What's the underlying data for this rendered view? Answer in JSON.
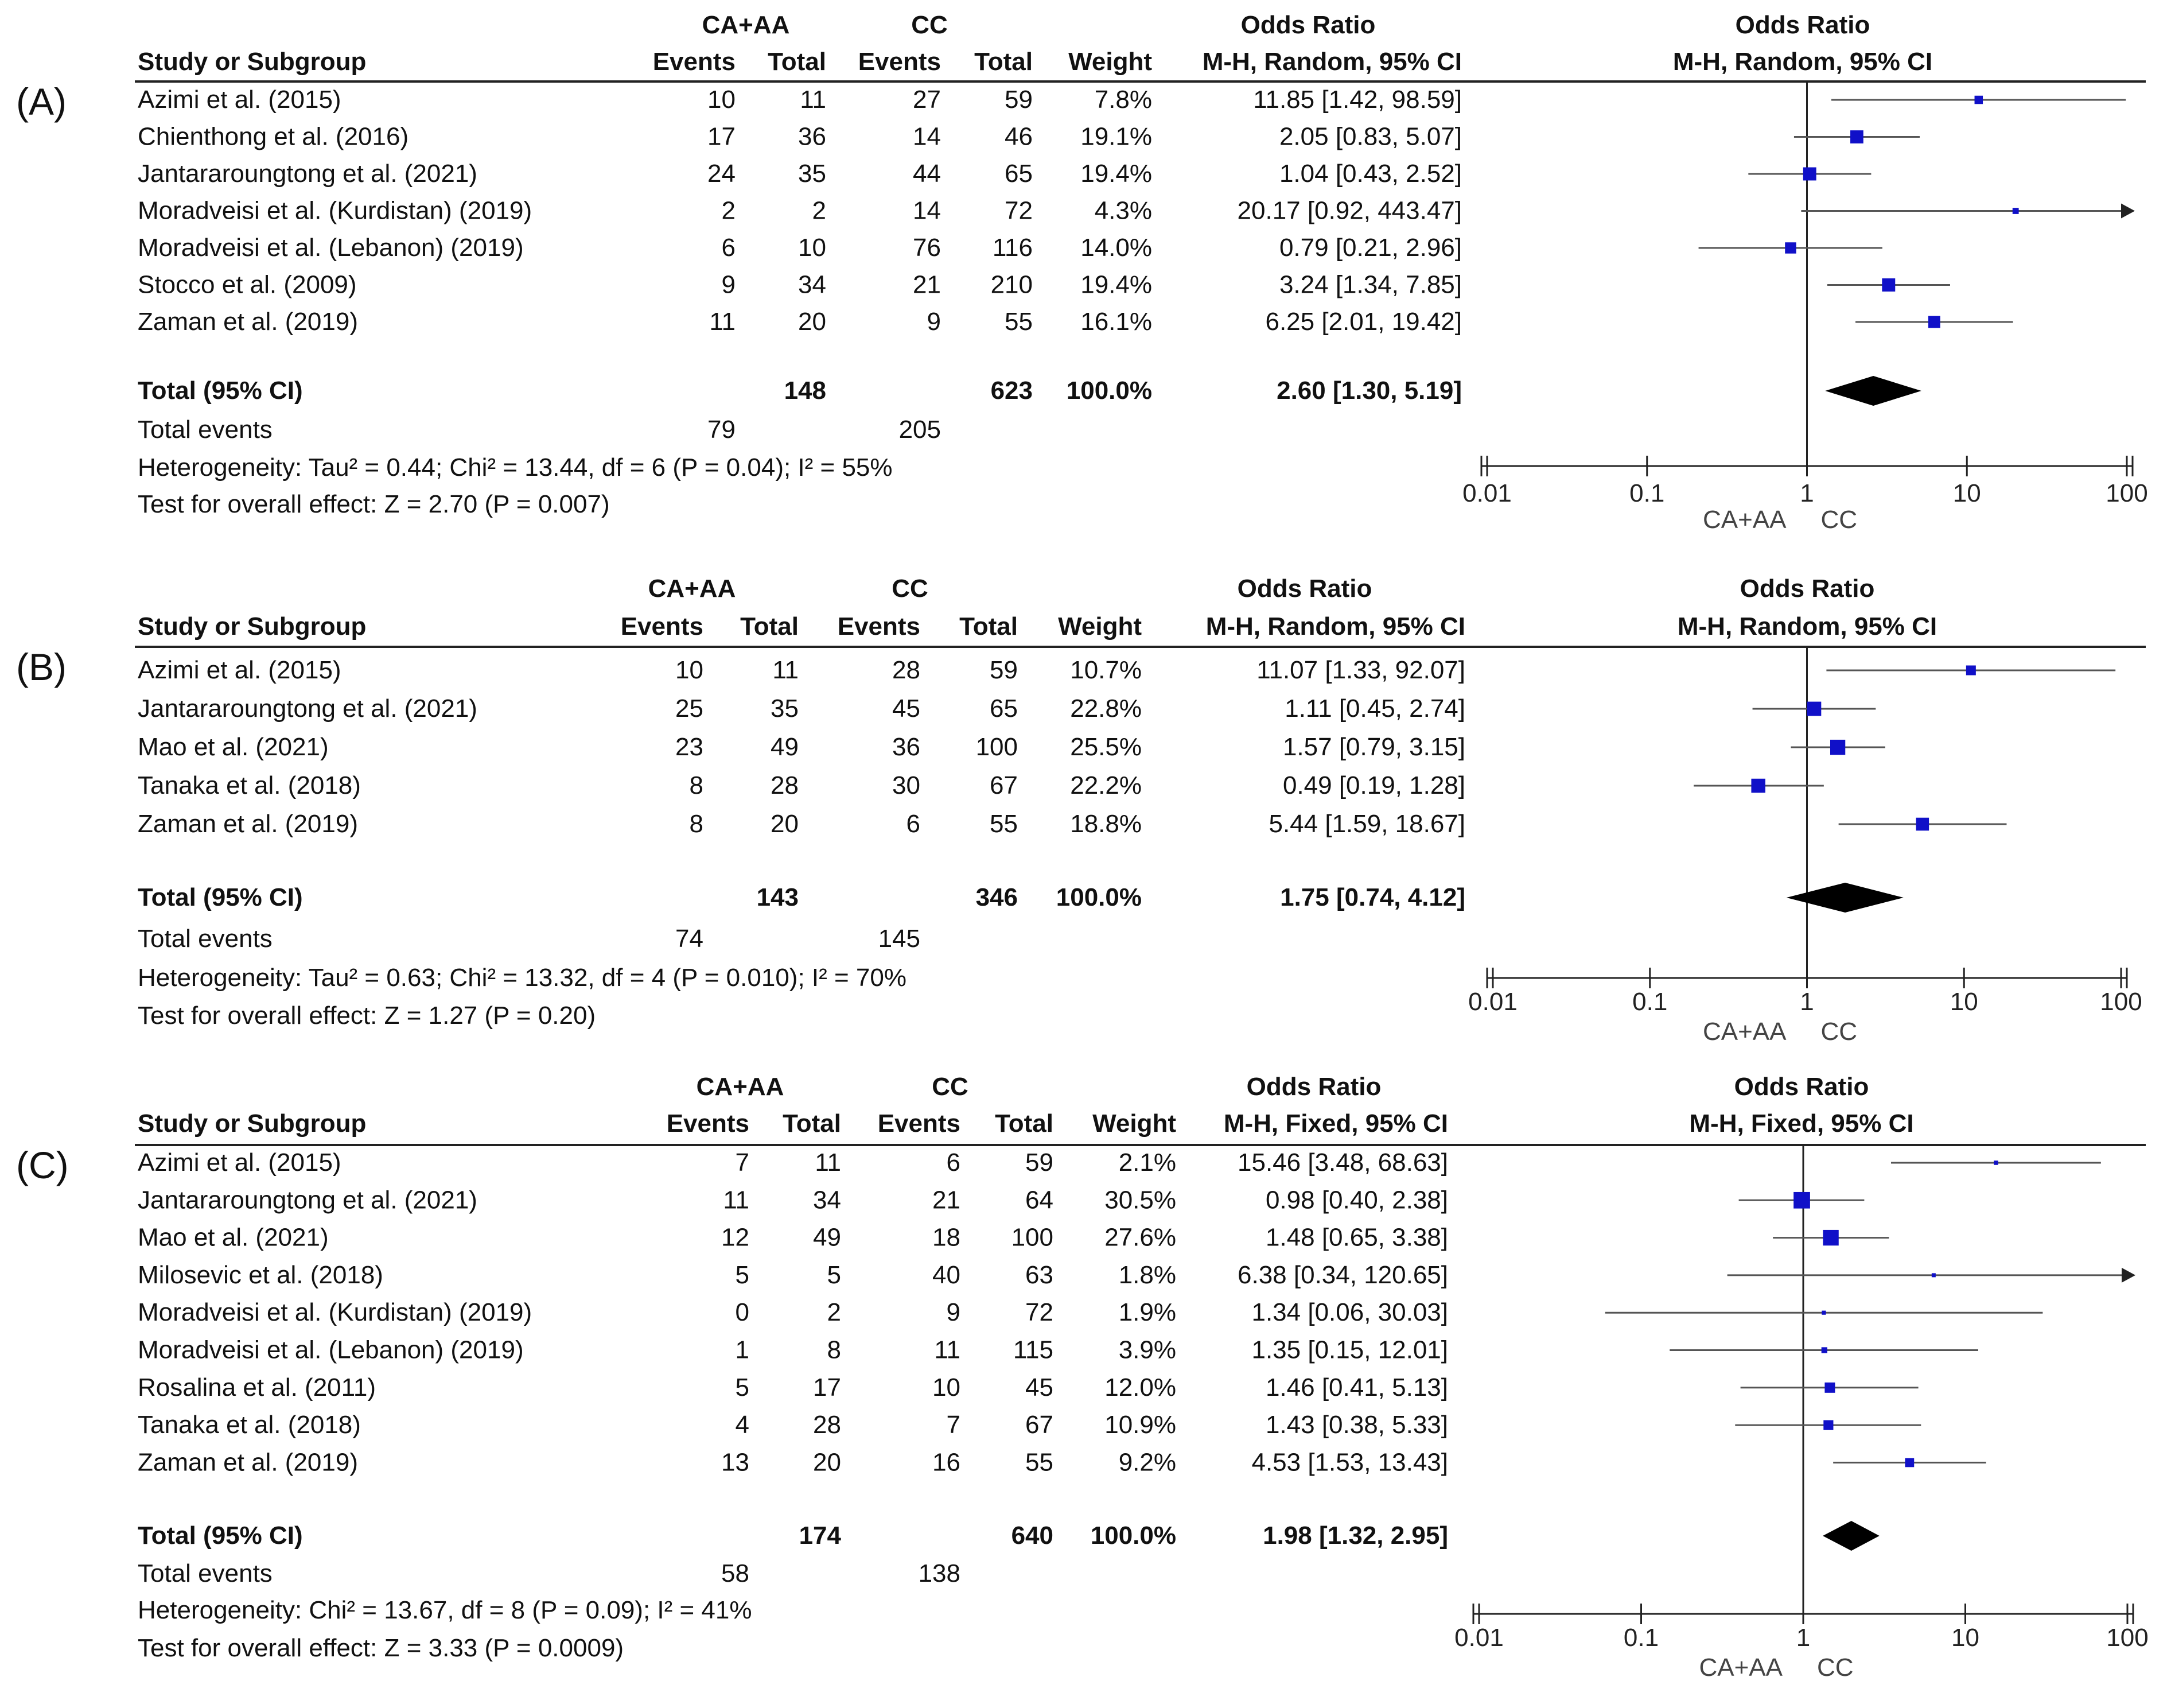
{
  "chart_data": [
    {
      "type": "forest",
      "panel": "(A)",
      "group1": "CA+AA",
      "group2": "CC",
      "col_headers": [
        "Study or Subgroup",
        "Events",
        "Total",
        "Events",
        "Total",
        "Weight",
        "Odds Ratio",
        "M-H, Random, 95% CI"
      ],
      "plot_header": [
        "Odds Ratio",
        "M-H, Random, 95% CI"
      ],
      "studies": [
        {
          "name": "Azimi et al. (2015)",
          "e1": "10",
          "n1": "11",
          "e2": "27",
          "n2": "59",
          "weight": "7.8%",
          "ci_text": "11.85 [1.42, 98.59]",
          "or": 11.85,
          "lo": 1.42,
          "hi": 98.59
        },
        {
          "name": "Chienthong et al. (2016)",
          "e1": "17",
          "n1": "36",
          "e2": "14",
          "n2": "46",
          "weight": "19.1%",
          "ci_text": "2.05 [0.83, 5.07]",
          "or": 2.05,
          "lo": 0.83,
          "hi": 5.07
        },
        {
          "name": "Jantararoungtong et al. (2021)",
          "e1": "24",
          "n1": "35",
          "e2": "44",
          "n2": "65",
          "weight": "19.4%",
          "ci_text": "1.04 [0.43, 2.52]",
          "or": 1.04,
          "lo": 0.43,
          "hi": 2.52
        },
        {
          "name": "Moradveisi et al. (Kurdistan) (2019)",
          "e1": "2",
          "n1": "2",
          "e2": "14",
          "n2": "72",
          "weight": "4.3%",
          "ci_text": "20.17 [0.92, 443.47]",
          "or": 20.17,
          "lo": 0.92,
          "hi": 443.47
        },
        {
          "name": "Moradveisi et al. (Lebanon) (2019)",
          "e1": "6",
          "n1": "10",
          "e2": "76",
          "n2": "116",
          "weight": "14.0%",
          "ci_text": "0.79 [0.21, 2.96]",
          "or": 0.79,
          "lo": 0.21,
          "hi": 2.96
        },
        {
          "name": "Stocco et al. (2009)",
          "e1": "9",
          "n1": "34",
          "e2": "21",
          "n2": "210",
          "weight": "19.4%",
          "ci_text": "3.24 [1.34, 7.85]",
          "or": 3.24,
          "lo": 1.34,
          "hi": 7.85
        },
        {
          "name": "Zaman et al. (2019)",
          "e1": "11",
          "n1": "20",
          "e2": "9",
          "n2": "55",
          "weight": "16.1%",
          "ci_text": "6.25 [2.01, 19.42]",
          "or": 6.25,
          "lo": 2.01,
          "hi": 19.42
        }
      ],
      "total": {
        "label": "Total (95% CI)",
        "n1": "148",
        "n2": "623",
        "weight": "100.0%",
        "ci_text": "2.60 [1.30, 5.19]",
        "or": 2.6,
        "lo": 1.3,
        "hi": 5.19
      },
      "events": {
        "label": "Total events",
        "e1": "79",
        "e2": "205"
      },
      "heterogeneity": "Heterogeneity: Tau² = 0.44; Chi² = 13.44, df = 6 (P = 0.04); I² = 55%",
      "overall": "Test for overall effect: Z = 2.70 (P = 0.007)",
      "axis": {
        "scale": "log",
        "range": [
          0.01,
          100
        ],
        "ticks": [
          0.01,
          0.1,
          1,
          10,
          100
        ],
        "tick_labels": [
          "0.01",
          "0.1",
          "1",
          "10",
          "100"
        ]
      },
      "favours": [
        "CA+AA",
        "CC"
      ]
    },
    {
      "type": "forest",
      "panel": "(B)",
      "group1": "CA+AA",
      "group2": "CC",
      "col_headers": [
        "Study or Subgroup",
        "Events",
        "Total",
        "Events",
        "Total",
        "Weight",
        "Odds Ratio",
        "M-H, Random, 95% CI"
      ],
      "plot_header": [
        "Odds Ratio",
        "M-H, Random, 95% CI"
      ],
      "studies": [
        {
          "name": "Azimi et al. (2015)",
          "e1": "10",
          "n1": "11",
          "e2": "28",
          "n2": "59",
          "weight": "10.7%",
          "ci_text": "11.07 [1.33, 92.07]",
          "or": 11.07,
          "lo": 1.33,
          "hi": 92.07
        },
        {
          "name": "Jantararoungtong et al. (2021)",
          "e1": "25",
          "n1": "35",
          "e2": "45",
          "n2": "65",
          "weight": "22.8%",
          "ci_text": "1.11 [0.45, 2.74]",
          "or": 1.11,
          "lo": 0.45,
          "hi": 2.74
        },
        {
          "name": "Mao et al. (2021)",
          "e1": "23",
          "n1": "49",
          "e2": "36",
          "n2": "100",
          "weight": "25.5%",
          "ci_text": "1.57 [0.79, 3.15]",
          "or": 1.57,
          "lo": 0.79,
          "hi": 3.15
        },
        {
          "name": "Tanaka et al. (2018)",
          "e1": "8",
          "n1": "28",
          "e2": "30",
          "n2": "67",
          "weight": "22.2%",
          "ci_text": "0.49 [0.19, 1.28]",
          "or": 0.49,
          "lo": 0.19,
          "hi": 1.28
        },
        {
          "name": "Zaman et al. (2019)",
          "e1": "8",
          "n1": "20",
          "e2": "6",
          "n2": "55",
          "weight": "18.8%",
          "ci_text": "5.44 [1.59, 18.67]",
          "or": 5.44,
          "lo": 1.59,
          "hi": 18.67
        }
      ],
      "total": {
        "label": "Total (95% CI)",
        "n1": "143",
        "n2": "346",
        "weight": "100.0%",
        "ci_text": "1.75 [0.74, 4.12]",
        "or": 1.75,
        "lo": 0.74,
        "hi": 4.12
      },
      "events": {
        "label": "Total events",
        "e1": "74",
        "e2": "145"
      },
      "heterogeneity": "Heterogeneity: Tau² = 0.63; Chi² = 13.32, df = 4 (P = 0.010); I² = 70%",
      "overall": "Test for overall effect: Z = 1.27 (P = 0.20)",
      "axis": {
        "scale": "log",
        "range": [
          0.01,
          100
        ],
        "ticks": [
          0.01,
          0.1,
          1,
          10,
          100
        ],
        "tick_labels": [
          "0.01",
          "0.1",
          "1",
          "10",
          "100"
        ]
      },
      "favours": [
        "CA+AA",
        "CC"
      ]
    },
    {
      "type": "forest",
      "panel": "(C)",
      "group1": "CA+AA",
      "group2": "CC",
      "col_headers": [
        "Study or Subgroup",
        "Events",
        "Total",
        "Events",
        "Total",
        "Weight",
        "Odds Ratio",
        "M-H, Fixed, 95% CI"
      ],
      "plot_header": [
        "Odds Ratio",
        "M-H, Fixed, 95% CI"
      ],
      "studies": [
        {
          "name": "Azimi et al. (2015)",
          "e1": "7",
          "n1": "11",
          "e2": "6",
          "n2": "59",
          "weight": "2.1%",
          "ci_text": "15.46 [3.48, 68.63]",
          "or": 15.46,
          "lo": 3.48,
          "hi": 68.63
        },
        {
          "name": "Jantararoungtong et al. (2021)",
          "e1": "11",
          "n1": "34",
          "e2": "21",
          "n2": "64",
          "weight": "30.5%",
          "ci_text": "0.98 [0.40, 2.38]",
          "or": 0.98,
          "lo": 0.4,
          "hi": 2.38
        },
        {
          "name": "Mao et al. (2021)",
          "e1": "12",
          "n1": "49",
          "e2": "18",
          "n2": "100",
          "weight": "27.6%",
          "ci_text": "1.48 [0.65, 3.38]",
          "or": 1.48,
          "lo": 0.65,
          "hi": 3.38
        },
        {
          "name": "Milosevic et al. (2018)",
          "e1": "5",
          "n1": "5",
          "e2": "40",
          "n2": "63",
          "weight": "1.8%",
          "ci_text": "6.38 [0.34, 120.65]",
          "or": 6.38,
          "lo": 0.34,
          "hi": 120.65
        },
        {
          "name": "Moradveisi et al. (Kurdistan) (2019)",
          "e1": "0",
          "n1": "2",
          "e2": "9",
          "n2": "72",
          "weight": "1.9%",
          "ci_text": "1.34 [0.06, 30.03]",
          "or": 1.34,
          "lo": 0.06,
          "hi": 30.03
        },
        {
          "name": "Moradveisi et al. (Lebanon) (2019)",
          "e1": "1",
          "n1": "8",
          "e2": "11",
          "n2": "115",
          "weight": "3.9%",
          "ci_text": "1.35 [0.15, 12.01]",
          "or": 1.35,
          "lo": 0.15,
          "hi": 12.01
        },
        {
          "name": "Rosalina et al. (2011)",
          "e1": "5",
          "n1": "17",
          "e2": "10",
          "n2": "45",
          "weight": "12.0%",
          "ci_text": "1.46 [0.41, 5.13]",
          "or": 1.46,
          "lo": 0.41,
          "hi": 5.13
        },
        {
          "name": "Tanaka et al. (2018)",
          "e1": "4",
          "n1": "28",
          "e2": "7",
          "n2": "67",
          "weight": "10.9%",
          "ci_text": "1.43 [0.38, 5.33]",
          "or": 1.43,
          "lo": 0.38,
          "hi": 5.33
        },
        {
          "name": "Zaman et al. (2019)",
          "e1": "13",
          "n1": "20",
          "e2": "16",
          "n2": "55",
          "weight": "9.2%",
          "ci_text": "4.53 [1.53, 13.43]",
          "or": 4.53,
          "lo": 1.53,
          "hi": 13.43
        }
      ],
      "total": {
        "label": "Total (95% CI)",
        "n1": "174",
        "n2": "640",
        "weight": "100.0%",
        "ci_text": "1.98 [1.32, 2.95]",
        "or": 1.98,
        "lo": 1.32,
        "hi": 2.95
      },
      "events": {
        "label": "Total events",
        "e1": "58",
        "e2": "138"
      },
      "heterogeneity": "Heterogeneity: Chi² = 13.67, df = 8 (P = 0.09); I² = 41%",
      "overall": "Test for overall effect: Z = 3.33 (P = 0.0009)",
      "axis": {
        "scale": "log",
        "range": [
          0.01,
          100
        ],
        "ticks": [
          0.01,
          0.1,
          1,
          10,
          100
        ],
        "tick_labels": [
          "0.01",
          "0.1",
          "1",
          "10",
          "100"
        ]
      },
      "favours": [
        "CA+AA",
        "CC"
      ]
    }
  ],
  "colors": {
    "marker": "#1010c8",
    "diamond": "#000000",
    "line": "#222222",
    "ci_line": "#555555"
  }
}
